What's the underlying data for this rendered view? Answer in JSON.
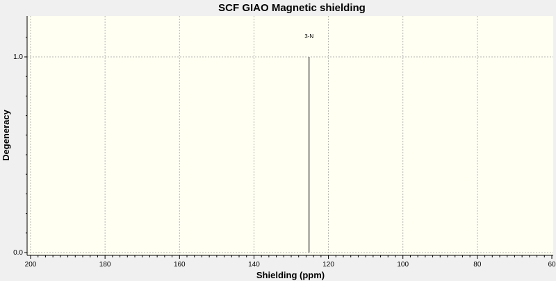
{
  "chart_data": {
    "type": "bar",
    "title": "SCF GIAO Magnetic shielding",
    "xlabel": "Shielding (ppm)",
    "ylabel": "Degeneracy",
    "xlim": [
      200,
      60
    ],
    "ylim": [
      0,
      1.2
    ],
    "x_ticks": [
      200,
      180,
      160,
      140,
      120,
      100,
      80,
      60
    ],
    "y_ticks": [
      0.0,
      1.0
    ],
    "x_tick_labels": [
      "200",
      "180",
      "160",
      "140",
      "120",
      "100",
      "80",
      "60"
    ],
    "y_tick_labels": [
      "0.0",
      "1.0"
    ],
    "grid": true,
    "peaks": [
      {
        "x": 125.2,
        "y": 1.0,
        "label": "3-N"
      }
    ]
  },
  "colors": {
    "plot_background": "#fffff2",
    "window_background": "#f0f0f0",
    "grid": "#b4b4b4",
    "peak": "#000000"
  }
}
